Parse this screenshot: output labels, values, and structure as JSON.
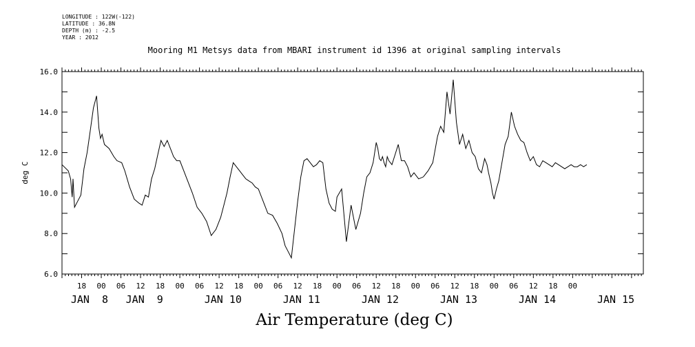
{
  "meta": {
    "longitude": "LONGITUDE : 122W(-122)",
    "latitude": "LATITUDE : 36.8N",
    "depth": "DEPTH (m) : -2.5",
    "year": "YEAR : 2012"
  },
  "chart_data": {
    "type": "line",
    "title": "Mooring M1 Metsys data from MBARI instrument id 1396 at original sampling intervals",
    "caption": "Air Temperature (deg C)",
    "ylabel": "deg C",
    "xlim": [
      7.5,
      14.9
    ],
    "ylim": [
      6.0,
      16.0
    ],
    "yticks": [
      "6.0",
      "8.0",
      "10.0",
      "12.0",
      "14.0",
      "16.0"
    ],
    "hour_labels": [
      {
        "x": 7.75,
        "label": "18"
      },
      {
        "x": 8.0,
        "label": "00"
      },
      {
        "x": 8.25,
        "label": "06"
      },
      {
        "x": 8.5,
        "label": "12"
      },
      {
        "x": 8.75,
        "label": "18"
      },
      {
        "x": 9.0,
        "label": "00"
      },
      {
        "x": 9.25,
        "label": "06"
      },
      {
        "x": 9.5,
        "label": "12"
      },
      {
        "x": 9.75,
        "label": "18"
      },
      {
        "x": 10.0,
        "label": "00"
      },
      {
        "x": 10.25,
        "label": "06"
      },
      {
        "x": 10.5,
        "label": "12"
      },
      {
        "x": 10.75,
        "label": "18"
      },
      {
        "x": 11.0,
        "label": "00"
      },
      {
        "x": 11.25,
        "label": "06"
      },
      {
        "x": 11.5,
        "label": "12"
      },
      {
        "x": 11.75,
        "label": "18"
      },
      {
        "x": 12.0,
        "label": "00"
      },
      {
        "x": 12.25,
        "label": "06"
      },
      {
        "x": 12.5,
        "label": "12"
      },
      {
        "x": 12.75,
        "label": "18"
      },
      {
        "x": 13.0,
        "label": "00"
      },
      {
        "x": 13.25,
        "label": "06"
      },
      {
        "x": 13.5,
        "label": "12"
      },
      {
        "x": 13.75,
        "label": "18"
      },
      {
        "x": 14.0,
        "label": "00"
      }
    ],
    "day_labels": [
      {
        "x": 7.85,
        "label": "JAN  8"
      },
      {
        "x": 8.55,
        "label": "JAN  9"
      },
      {
        "x": 9.55,
        "label": "JAN 10"
      },
      {
        "x": 10.55,
        "label": "JAN 11"
      },
      {
        "x": 11.55,
        "label": "JAN 12"
      },
      {
        "x": 12.55,
        "label": "JAN 13"
      },
      {
        "x": 13.55,
        "label": "JAN 14"
      },
      {
        "x": 14.55,
        "label": "JAN 15"
      }
    ],
    "series": [
      {
        "x": [
          7.5,
          7.58,
          7.61,
          7.63,
          7.64,
          7.66,
          7.7,
          7.74,
          7.78,
          7.82,
          7.86,
          7.9,
          7.94,
          7.97,
          7.99,
          8.01,
          8.04,
          8.1,
          8.16,
          8.2,
          8.26,
          8.3,
          8.36,
          8.42,
          8.45,
          8.48,
          8.52,
          8.56,
          8.6,
          8.64,
          8.68,
          8.72,
          8.76,
          8.8,
          8.84,
          8.88,
          8.92,
          8.96,
          9.0,
          9.05,
          9.1,
          9.16,
          9.22,
          9.28,
          9.34,
          9.4,
          9.46,
          9.52,
          9.56,
          9.6,
          9.64,
          9.68,
          9.72,
          9.76,
          9.8,
          9.84,
          9.88,
          9.92,
          9.96,
          10.0,
          10.06,
          10.12,
          10.18,
          10.24,
          10.3,
          10.34,
          10.38,
          10.42,
          10.46,
          10.5,
          10.54,
          10.58,
          10.62,
          10.66,
          10.7,
          10.74,
          10.78,
          10.82,
          10.86,
          10.9,
          10.94,
          10.98,
          11.0,
          11.06,
          11.12,
          11.18,
          11.24,
          11.3,
          11.34,
          11.38,
          11.42,
          11.46,
          11.5,
          11.52,
          11.54,
          11.56,
          11.58,
          11.6,
          11.62,
          11.64,
          11.66,
          11.7,
          11.74,
          11.78,
          11.82,
          11.86,
          11.9,
          11.94,
          11.98,
          12.04,
          12.1,
          12.16,
          12.22,
          12.28,
          12.32,
          12.36,
          12.4,
          12.44,
          12.48,
          12.52,
          12.56,
          12.6,
          12.64,
          12.68,
          12.72,
          12.76,
          12.8,
          12.84,
          12.88,
          12.91,
          12.93,
          12.96,
          12.98,
          13.0,
          13.03,
          13.06,
          13.1,
          13.14,
          13.18,
          13.22,
          13.26,
          13.3,
          13.34,
          13.38,
          13.42,
          13.46,
          13.5,
          13.54,
          13.58,
          13.62,
          13.66,
          13.7,
          13.74,
          13.78,
          13.82,
          13.86,
          13.9,
          13.94,
          13.98,
          14.02,
          14.06,
          14.1,
          14.14,
          14.18
        ],
        "y": [
          11.4,
          11.1,
          10.7,
          9.8,
          10.7,
          9.3,
          9.6,
          9.9,
          11.2,
          12.0,
          13.1,
          14.2,
          14.8,
          13.2,
          12.7,
          12.9,
          12.4,
          12.2,
          11.8,
          11.6,
          11.5,
          11.1,
          10.3,
          9.7,
          9.6,
          9.5,
          9.4,
          9.9,
          9.8,
          10.7,
          11.2,
          11.9,
          12.6,
          12.3,
          12.6,
          12.2,
          11.8,
          11.6,
          11.6,
          11.1,
          10.6,
          10.0,
          9.3,
          9.0,
          8.6,
          7.9,
          8.2,
          8.8,
          9.4,
          10.0,
          10.8,
          11.5,
          11.3,
          11.1,
          10.9,
          10.7,
          10.6,
          10.5,
          10.3,
          10.2,
          9.6,
          9.0,
          8.9,
          8.5,
          8.0,
          7.4,
          7.1,
          6.8,
          8.2,
          9.6,
          10.8,
          11.6,
          11.7,
          11.5,
          11.3,
          11.4,
          11.6,
          11.5,
          10.2,
          9.5,
          9.2,
          9.1,
          9.8,
          10.2,
          7.6,
          9.4,
          8.2,
          9.0,
          10.0,
          10.8,
          11.0,
          11.5,
          12.5,
          12.2,
          11.7,
          11.6,
          11.8,
          11.5,
          11.3,
          11.8,
          11.6,
          11.4,
          11.9,
          12.4,
          11.6,
          11.6,
          11.3,
          10.8,
          11.0,
          10.7,
          10.8,
          11.1,
          11.5,
          12.8,
          13.3,
          13.0,
          15.0,
          13.9,
          15.6,
          13.5,
          12.4,
          12.9,
          12.2,
          12.6,
          12.0,
          11.8,
          11.2,
          11.0,
          11.7,
          11.4,
          11.0,
          10.5,
          10.0,
          9.7,
          10.2,
          10.6,
          11.5,
          12.4,
          12.8,
          14.0,
          13.3,
          12.9,
          12.6,
          12.5,
          12.0,
          11.6,
          11.8,
          11.4,
          11.3,
          11.6,
          11.5,
          11.4,
          11.3,
          11.5,
          11.4,
          11.3,
          11.2,
          11.3,
          11.4,
          11.3,
          11.3,
          11.4,
          11.3,
          11.4
        ]
      }
    ]
  }
}
